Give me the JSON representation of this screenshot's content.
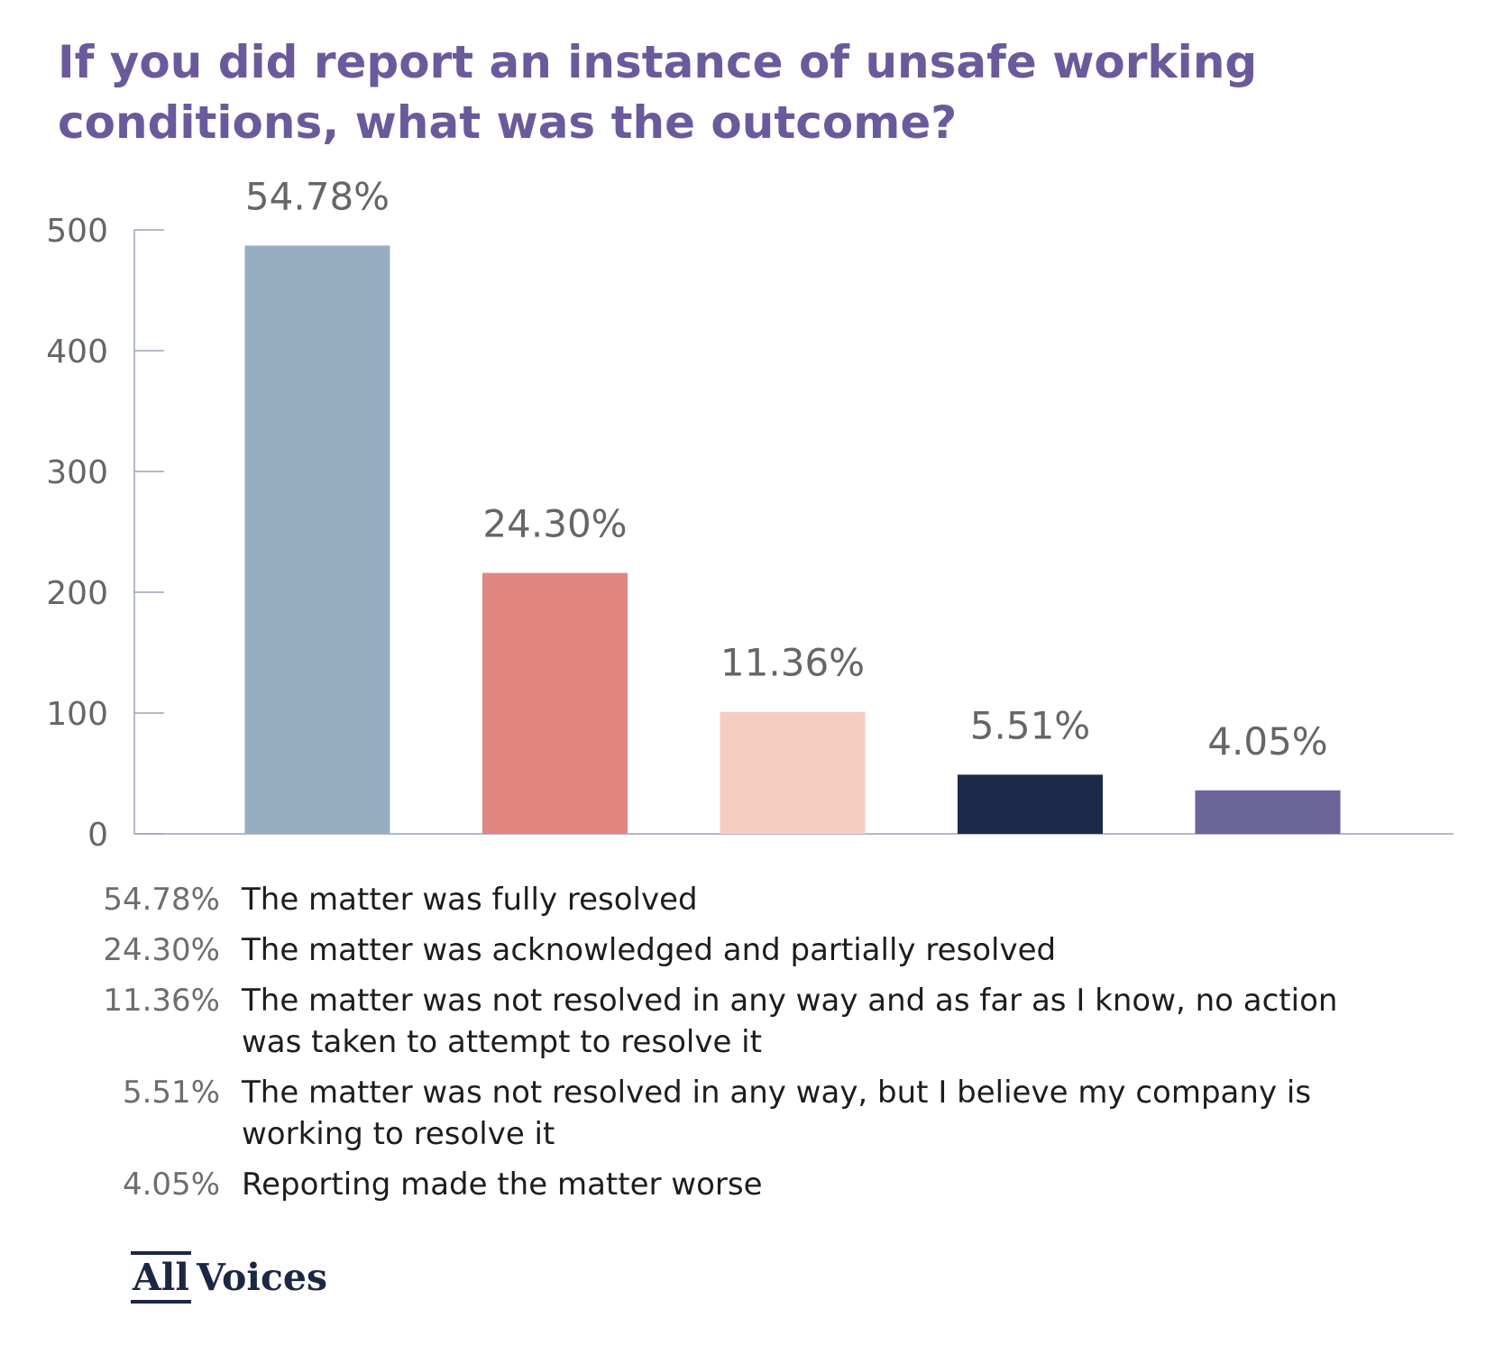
{
  "title_lines": [
    "If you did report an instance of unsafe working",
    "conditions, what was the outcome?"
  ],
  "chart_data": {
    "type": "bar",
    "title": "If you did report an instance of unsafe working conditions, what was the outcome?",
    "categories": [
      "The matter was fully resolved",
      "The matter was acknowledged and partially resolved",
      "The matter was not resolved in any way and as far as I know, no action was taken to attempt to resolve it",
      "The matter was not resolved in any way, but I believe my company is working to resolve it",
      "Reporting made the matter worse"
    ],
    "values": [
      487,
      216,
      101,
      49,
      36
    ],
    "data_labels": [
      "54.78%",
      "24.30%",
      "11.36%",
      "5.51%",
      "4.05%"
    ],
    "colors": [
      "#97adc2",
      "#e18580",
      "#f5cdc0",
      "#1c2948",
      "#6b6499"
    ],
    "ylim": [
      0,
      500
    ],
    "yticks": [
      "0",
      "100",
      "200",
      "300",
      "400",
      "500"
    ],
    "grid": false,
    "xlabel": "",
    "ylabel": "",
    "legend_placement": "bottom"
  },
  "legend": [
    {
      "pct": "54.78%",
      "lines": [
        "The matter was fully resolved"
      ]
    },
    {
      "pct": "24.30%",
      "lines": [
        "The matter was acknowledged and partially resolved"
      ]
    },
    {
      "pct": "11.36%",
      "lines": [
        "The matter was not resolved in any way and as far as I know, no action",
        "was taken to attempt to resolve it"
      ]
    },
    {
      "pct": "5.51%",
      "lines": [
        "The matter was not resolved in any way, but I believe my company is",
        "working to resolve it"
      ]
    },
    {
      "pct": "4.05%",
      "lines": [
        "Reporting made the matter worse"
      ]
    }
  ],
  "logo": {
    "part1": "All",
    "part2": "Voices"
  },
  "colors": {
    "title": "#6a5a9c",
    "axis": "#9aa3b5",
    "tick_text": "#666666",
    "logo": "#1c2744"
  }
}
